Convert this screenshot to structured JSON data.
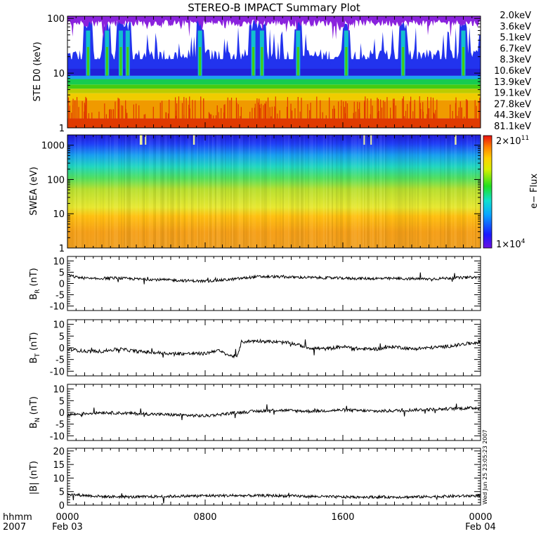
{
  "title": "STEREO-B IMPACT Summary Plot",
  "timestamp": "Wed Jun 25 23:05:23 2007",
  "time_axis": {
    "row_label_1": "hhmm",
    "row_label_2": "2007",
    "ticks": [
      {
        "hour": 0,
        "label": "0000",
        "sub": "Feb 03"
      },
      {
        "hour": 8,
        "label": "0800",
        "sub": ""
      },
      {
        "hour": 16,
        "label": "1600",
        "sub": ""
      },
      {
        "hour": 24,
        "label": "0000",
        "sub": "Feb 04"
      }
    ]
  },
  "chart_data": [
    {
      "type": "line",
      "panel": "ste",
      "ylabel": "STE D0 (keV)",
      "yscale": "log",
      "ylim": [
        1,
        110
      ],
      "yticks": [
        1,
        10,
        100
      ],
      "xlim_hours": [
        0,
        24
      ],
      "grid": false,
      "legend_position": "right",
      "series": [
        {
          "name": "2.0keV",
          "color": "#8a22dd"
        },
        {
          "name": "3.6keV",
          "color": "#5522cc"
        },
        {
          "name": "5.1keV",
          "color": "#2233ee"
        },
        {
          "name": "6.7keV",
          "color": "#1ea0f0"
        },
        {
          "name": "8.3keV",
          "color": "#10d8c8"
        },
        {
          "name": "10.6keV",
          "color": "#16cc50"
        },
        {
          "name": "13.9keV",
          "color": "#44cc11"
        },
        {
          "name": "19.1keV",
          "color": "#bbcc00"
        },
        {
          "name": "27.8keV",
          "color": "#f0cc00"
        },
        {
          "name": "44.3keV",
          "color": "#f09a00"
        },
        {
          "name": "81.1keV",
          "color": "#e03a00"
        }
      ]
    },
    {
      "type": "heatmap",
      "panel": "swea",
      "ylabel": "SWEA (eV)",
      "yscale": "log",
      "ylim": [
        1,
        2000
      ],
      "yticks": [
        1,
        10,
        100,
        1000
      ],
      "xlim_hours": [
        0,
        24
      ],
      "colorbar": {
        "label": "e− Flux",
        "max_base": "2×10",
        "max_exp": "11",
        "min_base": "1×10",
        "min_exp": "4"
      }
    },
    {
      "type": "line",
      "panel": "br",
      "ylabel_base": "B",
      "ylabel_sub": "R",
      "ylabel_unit": "(nT)",
      "ylim": [
        -12,
        12
      ],
      "yticks": [
        -10,
        -5,
        0,
        5,
        10
      ],
      "xlim_hours": [
        0,
        24
      ],
      "approx_level": 2,
      "keypoints": [
        [
          0,
          3.8
        ],
        [
          0.5,
          2.8
        ],
        [
          1.5,
          2
        ],
        [
          2.5,
          2.5
        ],
        [
          4,
          2
        ],
        [
          6,
          1.5
        ],
        [
          8,
          1
        ],
        [
          9.5,
          1.8
        ],
        [
          11,
          3
        ],
        [
          12,
          3
        ],
        [
          13,
          2.8
        ],
        [
          15,
          2.5
        ],
        [
          17,
          2.2
        ],
        [
          19,
          2.2
        ],
        [
          21,
          2
        ],
        [
          22.5,
          2.5
        ],
        [
          24,
          2.8
        ]
      ]
    },
    {
      "type": "line",
      "panel": "bt",
      "ylabel_base": "B",
      "ylabel_sub": "T",
      "ylabel_unit": "(nT)",
      "ylim": [
        -12,
        12
      ],
      "yticks": [
        -10,
        -5,
        0,
        5,
        10
      ],
      "xlim_hours": [
        0,
        24
      ],
      "keypoints": [
        [
          0,
          -0.5
        ],
        [
          1,
          -1.5
        ],
        [
          2,
          -1.5
        ],
        [
          3,
          -0.5
        ],
        [
          4,
          -1.5
        ],
        [
          5,
          -2
        ],
        [
          6,
          -2.5
        ],
        [
          7,
          -2.5
        ],
        [
          8,
          -2.5
        ],
        [
          8.7,
          -1
        ],
        [
          9,
          -2
        ],
        [
          9.5,
          -3.5
        ],
        [
          9.9,
          -3.5
        ],
        [
          10.1,
          2.5
        ],
        [
          11,
          3
        ],
        [
          12,
          2.5
        ],
        [
          13,
          2
        ],
        [
          14,
          0
        ],
        [
          15,
          -0.5
        ],
        [
          16,
          0.5
        ],
        [
          17,
          -0.5
        ],
        [
          18,
          -0.5
        ],
        [
          19,
          0.5
        ],
        [
          20,
          -0.5
        ],
        [
          21,
          0
        ],
        [
          22,
          0.5
        ],
        [
          23,
          1.5
        ],
        [
          24,
          2.5
        ]
      ]
    },
    {
      "type": "line",
      "panel": "bn",
      "ylabel_base": "B",
      "ylabel_sub": "N",
      "ylabel_unit": "(nT)",
      "ylim": [
        -12,
        12
      ],
      "yticks": [
        -10,
        -5,
        0,
        5,
        10
      ],
      "xlim_hours": [
        0,
        24
      ],
      "keypoints": [
        [
          0,
          -1
        ],
        [
          2,
          0
        ],
        [
          4,
          -0.5
        ],
        [
          6,
          -1
        ],
        [
          8,
          -1.5
        ],
        [
          10,
          0
        ],
        [
          12,
          1
        ],
        [
          14,
          0.5
        ],
        [
          16,
          1
        ],
        [
          18,
          0.5
        ],
        [
          20,
          1
        ],
        [
          22,
          1.5
        ],
        [
          24,
          2
        ]
      ]
    },
    {
      "type": "line",
      "panel": "bmag",
      "ylabel": "|B| (nT)",
      "ylim": [
        0,
        21
      ],
      "yticks": [
        0,
        5,
        10,
        15,
        20
      ],
      "xlim_hours": [
        0,
        24
      ],
      "keypoints": [
        [
          0,
          4
        ],
        [
          2,
          3.2
        ],
        [
          4,
          3
        ],
        [
          8,
          3.5
        ],
        [
          10,
          3.5
        ],
        [
          12,
          3.5
        ],
        [
          16,
          3
        ],
        [
          20,
          3
        ],
        [
          24,
          3.5
        ]
      ]
    }
  ]
}
